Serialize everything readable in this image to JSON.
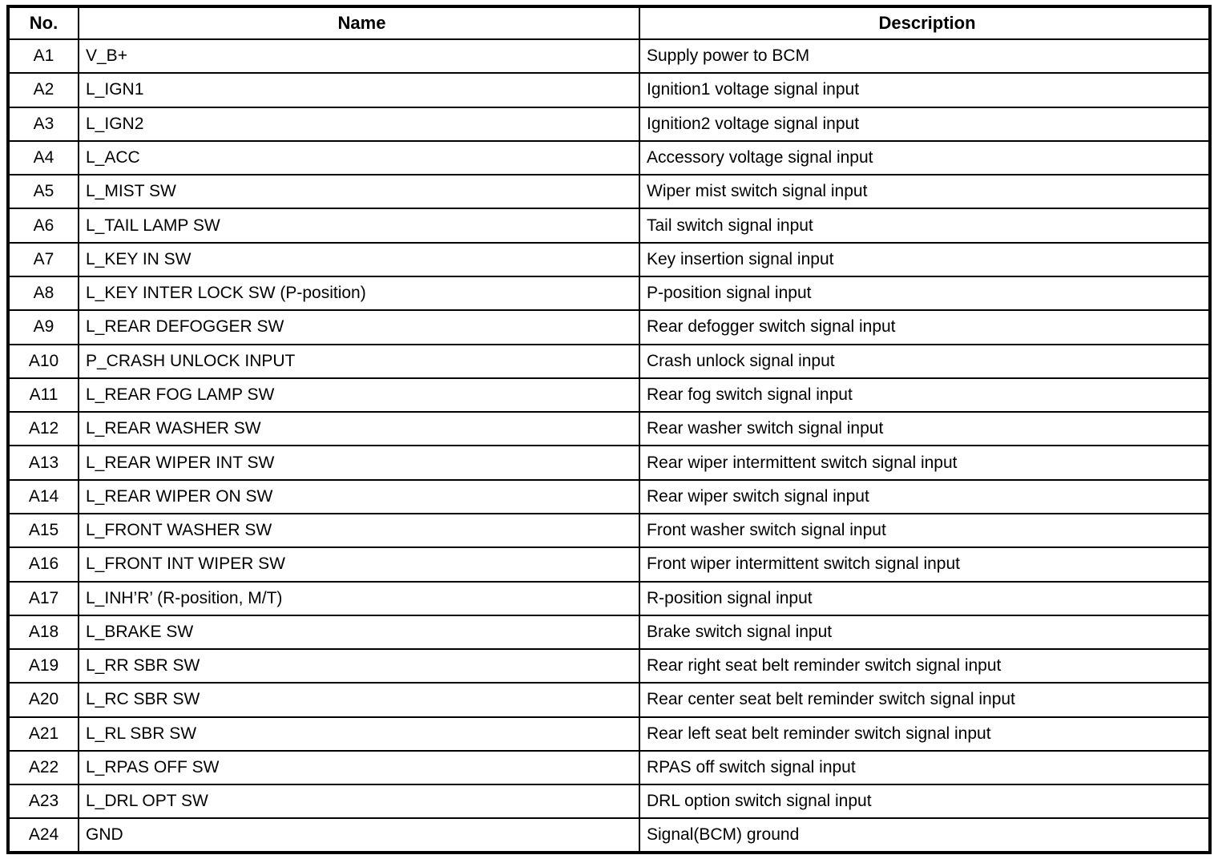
{
  "table": {
    "headers": {
      "no": "No.",
      "name": "Name",
      "description": "Description"
    },
    "rows": [
      {
        "no": "A1",
        "name": "V_B+",
        "description": "Supply power to BCM"
      },
      {
        "no": "A2",
        "name": "L_IGN1",
        "description": "Ignition1 voltage signal input"
      },
      {
        "no": "A3",
        "name": "L_IGN2",
        "description": "Ignition2 voltage signal input"
      },
      {
        "no": "A4",
        "name": "L_ACC",
        "description": "Accessory voltage signal input"
      },
      {
        "no": "A5",
        "name": "L_MIST SW",
        "description": "Wiper mist switch signal input"
      },
      {
        "no": "A6",
        "name": "L_TAIL LAMP SW",
        "description": "Tail switch signal input"
      },
      {
        "no": "A7",
        "name": "L_KEY IN SW",
        "description": "Key insertion signal input"
      },
      {
        "no": "A8",
        "name": "L_KEY INTER LOCK SW (P-position)",
        "description": "P-position signal input"
      },
      {
        "no": "A9",
        "name": "L_REAR DEFOGGER SW",
        "description": "Rear defogger switch signal input"
      },
      {
        "no": "A10",
        "name": "P_CRASH UNLOCK INPUT",
        "description": "Crash unlock signal input"
      },
      {
        "no": "A11",
        "name": "L_REAR FOG LAMP SW",
        "description": "Rear fog switch signal input"
      },
      {
        "no": "A12",
        "name": "L_REAR WASHER SW",
        "description": "Rear washer switch signal input"
      },
      {
        "no": "A13",
        "name": "L_REAR WIPER INT SW",
        "description": "Rear wiper intermittent switch signal input"
      },
      {
        "no": "A14",
        "name": "L_REAR WIPER ON SW",
        "description": "Rear wiper switch signal input"
      },
      {
        "no": "A15",
        "name": "L_FRONT WASHER SW",
        "description": "Front washer switch signal input"
      },
      {
        "no": "A16",
        "name": "L_FRONT INT WIPER SW",
        "description": "Front wiper intermittent switch signal input"
      },
      {
        "no": "A17",
        "name": "L_INH’R’ (R-position, M/T)",
        "description": "R-position signal input"
      },
      {
        "no": "A18",
        "name": "L_BRAKE SW",
        "description": "Brake switch signal input"
      },
      {
        "no": "A19",
        "name": "L_RR SBR SW",
        "description": "Rear right seat belt reminder switch signal input"
      },
      {
        "no": "A20",
        "name": "L_RC SBR SW",
        "description": "Rear center seat belt reminder switch signal input"
      },
      {
        "no": "A21",
        "name": "L_RL SBR SW",
        "description": "Rear left seat belt reminder switch signal input"
      },
      {
        "no": "A22",
        "name": "L_RPAS OFF SW",
        "description": "RPAS off switch signal input"
      },
      {
        "no": "A23",
        "name": "L_DRL OPT SW",
        "description": "DRL option switch signal input"
      },
      {
        "no": "A24",
        "name": "GND",
        "description": "Signal(BCM) ground"
      }
    ]
  }
}
